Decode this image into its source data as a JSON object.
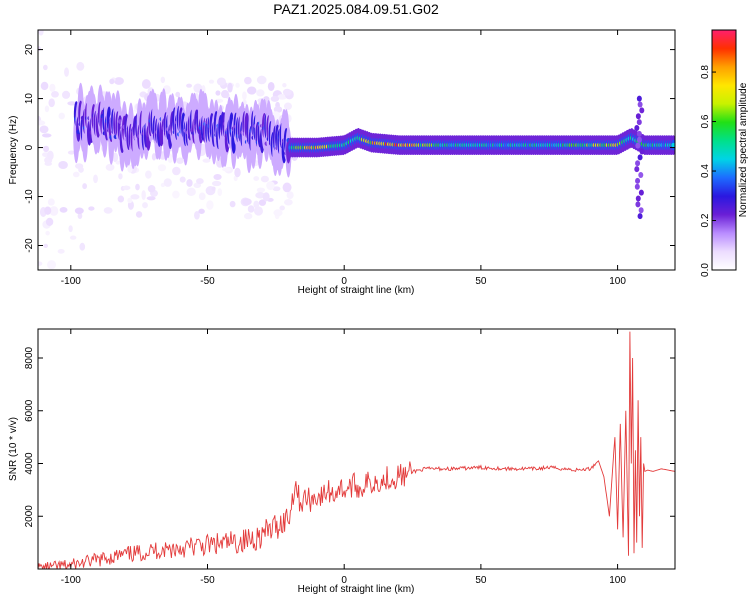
{
  "title": "PAZ1.2025.084.09.51.G02",
  "colors": {
    "snr_line": "#e33b3b",
    "frame": "#000000"
  },
  "spectrogram": {
    "type": "heatmap",
    "xlabel": "Height of straight line (km)",
    "ylabel": "Frequency (Hz)",
    "xlim": [
      -112,
      121
    ],
    "ylim": [
      -25,
      24
    ],
    "x_ticks": [
      "-100",
      "-50",
      "0",
      "50",
      "100"
    ],
    "x_tick_values": [
      -100,
      -50,
      0,
      50,
      100
    ],
    "y_ticks": [
      "-20",
      "-10",
      "0",
      "10",
      "20"
    ],
    "y_tick_values": [
      -20,
      -10,
      0,
      10,
      20
    ],
    "colorbar": {
      "label": "Normalized spectral amplitude",
      "range": [
        0,
        0.97
      ],
      "ticks": [
        "0.0",
        "0.2",
        "0.4",
        "0.6",
        "0.8"
      ],
      "tick_values": [
        0.0,
        0.2,
        0.4,
        0.6,
        0.8
      ],
      "colormap": [
        "#ffffff",
        "#ecdcff",
        "#b98cff",
        "#6a1fd6",
        "#2a18e0",
        "#1d6cff",
        "#00d4e6",
        "#00e08a",
        "#21e016",
        "#c8f200",
        "#ffe600",
        "#ffa000",
        "#ff3000",
        "#ff1f6e"
      ]
    },
    "ridge": {
      "x": [
        -98,
        -90,
        -80,
        -70,
        -60,
        -50,
        -40,
        -30,
        -22,
        -20,
        -10,
        0,
        5,
        10,
        20,
        40,
        60,
        80,
        100,
        105,
        110,
        121
      ],
      "freq_hz": [
        5,
        5,
        3,
        4,
        4,
        4,
        3,
        3,
        1,
        0,
        0,
        0.5,
        2,
        1,
        0.5,
        0.5,
        0.5,
        0.5,
        0.5,
        2,
        0.5,
        0.5
      ],
      "amplitude": [
        0.3,
        0.3,
        0.25,
        0.3,
        0.3,
        0.3,
        0.3,
        0.3,
        0.3,
        0.5,
        0.85,
        0.55,
        0.55,
        0.8,
        0.85,
        0.5,
        0.5,
        0.55,
        0.75,
        0.5,
        0.55,
        0.45
      ]
    }
  },
  "chart_data": {
    "type": "line",
    "xlabel": "Height of straight line (km)",
    "ylabel": "SNR (10 * v/v)",
    "xlim": [
      -112,
      121
    ],
    "ylim": [
      0,
      9100
    ],
    "x_ticks": [
      "-100",
      "-50",
      "0",
      "50",
      "100"
    ],
    "x_tick_values": [
      -100,
      -50,
      0,
      50,
      100
    ],
    "y_ticks": [
      "2000",
      "4000",
      "6000",
      "8000"
    ],
    "y_tick_values": [
      2000,
      4000,
      6000,
      8000
    ],
    "series": [
      {
        "x": [
          -112,
          -105,
          -100,
          -95,
          -90,
          -85,
          -80,
          -75,
          -70,
          -65,
          -60,
          -55,
          -50,
          -45,
          -40,
          -35,
          -30,
          -25,
          -20,
          -18,
          -16,
          -14,
          -12,
          -10,
          -8,
          -6,
          -4,
          -2,
          0,
          2,
          4,
          6,
          8,
          10,
          12,
          14,
          16,
          18,
          20,
          22,
          25,
          30,
          35,
          40,
          50,
          60,
          70,
          75,
          80,
          85,
          90,
          93,
          95,
          97,
          99,
          100,
          101,
          102,
          103,
          104,
          104.5,
          105,
          105.5,
          106,
          106.5,
          107,
          107.5,
          108,
          108.5,
          109,
          109.5,
          110,
          111,
          113,
          116,
          121
        ],
        "values": [
          50,
          100,
          150,
          250,
          350,
          450,
          550,
          600,
          700,
          750,
          800,
          850,
          900,
          950,
          1000,
          1100,
          1300,
          1600,
          2000,
          3300,
          2500,
          2700,
          2600,
          2800,
          2700,
          3000,
          2800,
          3100,
          3000,
          3100,
          3200,
          3000,
          3300,
          3200,
          3400,
          3300,
          3500,
          3400,
          3600,
          3500,
          3700,
          3800,
          3800,
          3800,
          3850,
          3800,
          3800,
          3850,
          3800,
          3750,
          3800,
          4100,
          3500,
          2000,
          5000,
          1500,
          5500,
          1200,
          6000,
          500,
          9000,
          4000,
          8000,
          600,
          4500,
          1000,
          6400,
          2000,
          5000,
          800,
          4000,
          3700,
          3750,
          3700,
          3800,
          3700
        ]
      }
    ]
  }
}
